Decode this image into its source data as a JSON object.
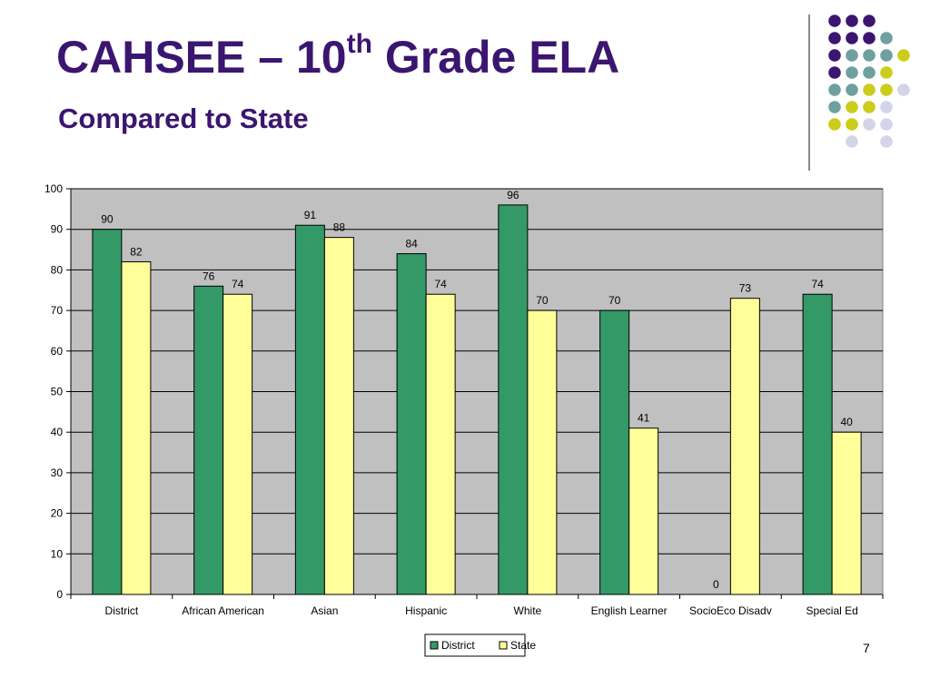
{
  "slide": {
    "title_main": "CAHSEE – 10",
    "title_sup": "th",
    "title_end": " Grade ELA",
    "subtitle": "Compared to State",
    "page_number": "7"
  },
  "decoration": {
    "dot_colors": {
      "purple": "#3b1670",
      "teal": "#6fa0a0",
      "yellow": "#cccc1a",
      "lavender": "#d4d4e8"
    }
  },
  "chart_data": {
    "type": "bar",
    "categories": [
      "District",
      "African American",
      "Asian",
      "Hispanic",
      "White",
      "English Learner",
      "SocioEco Disadv",
      "Special Ed"
    ],
    "series": [
      {
        "name": "District",
        "values": [
          90,
          76,
          91,
          84,
          96,
          70,
          0,
          74
        ],
        "color": "#339966"
      },
      {
        "name": "State",
        "values": [
          82,
          74,
          88,
          74,
          70,
          41,
          73,
          40
        ],
        "color": "#ffff99"
      }
    ],
    "ylim": [
      0,
      100
    ],
    "yticks": [
      0,
      10,
      20,
      30,
      40,
      50,
      60,
      70,
      80,
      90,
      100
    ],
    "grid": true,
    "plot_background": "#c0c0c0",
    "legend_position": "bottom"
  }
}
